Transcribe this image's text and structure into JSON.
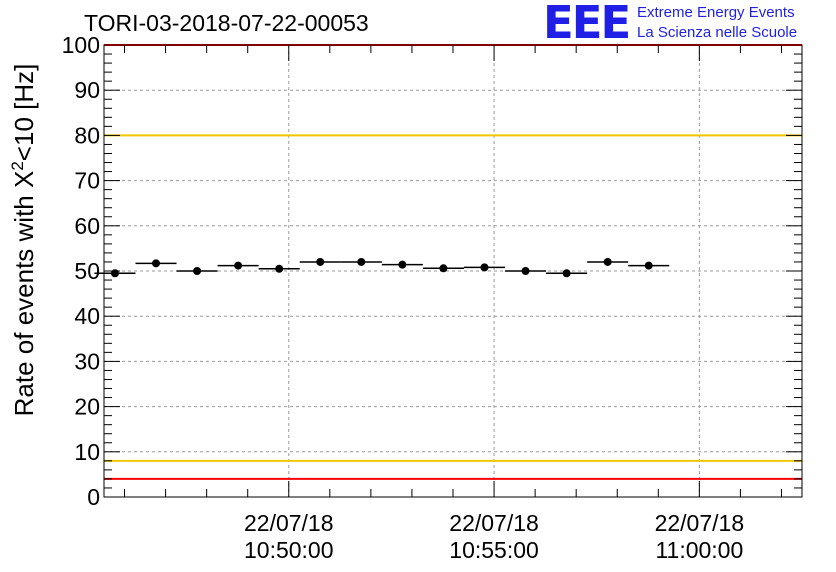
{
  "header": {
    "title": "TORI-03-2018-07-22-00053",
    "logo_text": "EEE",
    "brand_line1": "Extreme Energy Events",
    "brand_line2": "La Scienza nelle Scuole"
  },
  "colors": {
    "brand": "#1f1fe6",
    "threshold_red": "#ff0000",
    "threshold_yellow": "#f0c800",
    "grid": "#9a9a9a"
  },
  "chart_data": {
    "type": "scatter",
    "title": "TORI-03-2018-07-22-00053",
    "xlabel": "",
    "ylabel": "Rate of events with X²<10 [Hz]",
    "ylabel_parts": {
      "pre": "Rate of events with X",
      "sup": "2",
      "post": "<10 [Hz]"
    },
    "ylim": [
      0,
      100
    ],
    "yticks": [
      0,
      10,
      20,
      30,
      40,
      50,
      60,
      70,
      80,
      90,
      100
    ],
    "y_minor_step": 2,
    "xlim_seconds": [
      0,
      1020
    ],
    "x_tick_labels": [
      {
        "t": 270,
        "date": "22/07/18",
        "time": "10:50:00"
      },
      {
        "t": 570,
        "date": "22/07/18",
        "time": "10:55:00"
      },
      {
        "t": 870,
        "date": "22/07/18",
        "time": "11:00:00"
      }
    ],
    "x_minor_step_seconds": 60,
    "grid": true,
    "bin_width_seconds": 60,
    "points": [
      {
        "t": 16,
        "v": 49.5
      },
      {
        "t": 76,
        "v": 51.7
      },
      {
        "t": 136,
        "v": 50.0
      },
      {
        "t": 196,
        "v": 51.2
      },
      {
        "t": 256,
        "v": 50.5
      },
      {
        "t": 316,
        "v": 52.0
      },
      {
        "t": 376,
        "v": 52.0
      },
      {
        "t": 436,
        "v": 51.4
      },
      {
        "t": 496,
        "v": 50.6
      },
      {
        "t": 556,
        "v": 50.8
      },
      {
        "t": 616,
        "v": 50.0
      },
      {
        "t": 676,
        "v": 49.5
      },
      {
        "t": 736,
        "v": 52.0
      },
      {
        "t": 796,
        "v": 51.2
      }
    ],
    "thresholds": [
      {
        "name": "upper-red",
        "value": 100,
        "color": "#ff0000"
      },
      {
        "name": "upper-yellow",
        "value": 80,
        "color": "#f0c800"
      },
      {
        "name": "lower-yellow",
        "value": 8,
        "color": "#f0c800"
      },
      {
        "name": "lower-red",
        "value": 4,
        "color": "#ff0000"
      }
    ]
  }
}
